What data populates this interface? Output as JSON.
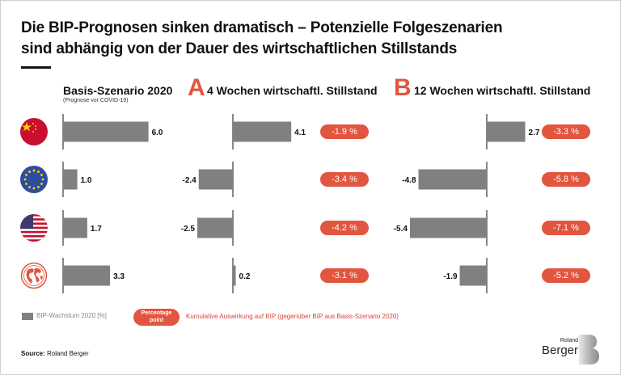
{
  "title": {
    "line1": "Die BIP-Prognosen sinken dramatisch – Potenzielle Folgeszenarien",
    "line2": "sind abhängig von der Dauer des wirtschaftlichen Stillstands"
  },
  "columns": {
    "basis": {
      "label": "Basis-Szenario  2020",
      "sub": "(Prognose vor COVID-19)"
    },
    "a": {
      "letter": "A",
      "label": "4 Wochen wirtschaftl. Stillstand"
    },
    "b": {
      "letter": "B",
      "label": "12 Wochen wirtschaftl. Stillstand"
    }
  },
  "regions": [
    {
      "icon": "china-flag-icon"
    },
    {
      "icon": "eu-flag-icon"
    },
    {
      "icon": "usa-flag-icon"
    },
    {
      "icon": "world-globe-icon"
    }
  ],
  "chart_data": {
    "type": "bar",
    "orientation": "horizontal",
    "categories": [
      "China",
      "EU",
      "USA",
      "Welt"
    ],
    "series": [
      {
        "name": "Basis-Szenario 2020",
        "values": [
          6.0,
          1.0,
          1.7,
          3.3
        ],
        "labels": [
          "6.0",
          "1.0",
          "1.7",
          "3.3"
        ]
      },
      {
        "name": "4 Wochen wirtschaftl. Stillstand",
        "values": [
          4.1,
          -2.4,
          -2.5,
          0.2
        ],
        "labels": [
          "4.1",
          "-2.4",
          "-2.5",
          "0.2"
        ],
        "impact": [
          "-1.9 %",
          "-3.4 %",
          "-4.2 %",
          "-3.1 %"
        ]
      },
      {
        "name": "12 Wochen wirtschaftl. Stillstand",
        "values": [
          2.7,
          -4.8,
          -5.4,
          -1.9
        ],
        "labels": [
          "2.7",
          "-4.8",
          "-5.4",
          "-1.9"
        ],
        "impact": [
          "-3.3 %",
          "-5.8 %",
          "-7.1 %",
          "-5.2 %"
        ]
      }
    ],
    "unit": "%",
    "bar_color": "#808080",
    "impact_color": "#e2553f"
  },
  "legend": {
    "bar_label": "BIP-Wachstum 2020  [%]",
    "pill_label_line1": "Percentage",
    "pill_label_line2": "point",
    "impact_label": "Kumulative Auswirkung auf BIP (gegenüber BIP aus Basis-Szenario 2020)"
  },
  "source": {
    "prefix": "Source:",
    "text": " Roland Berger"
  },
  "logo": {
    "line1": "Roland",
    "line2": "Berger"
  },
  "colors": {
    "accent": "#e2553f",
    "bar": "#808080",
    "text": "#111111"
  }
}
